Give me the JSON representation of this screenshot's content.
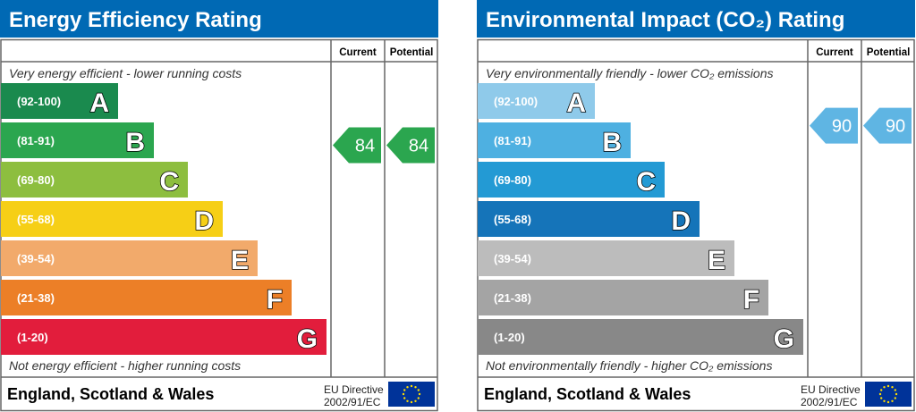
{
  "chart_data": [
    {
      "type": "bar",
      "title": "Energy Efficiency Rating",
      "column_headers": [
        "Current",
        "Potential"
      ],
      "top_note": "Very energy efficient - lower running costs",
      "bottom_note": "Not energy efficient - higher running costs",
      "footer": "England, Scotland & Wales",
      "directive": [
        "EU Directive",
        "2002/91/EC"
      ],
      "bands": [
        {
          "letter": "A",
          "range": "(92-100)",
          "color": "#1a8a4e"
        },
        {
          "letter": "B",
          "range": "(81-91)",
          "color": "#2ba64f"
        },
        {
          "letter": "C",
          "range": "(69-80)",
          "color": "#8dbe3f"
        },
        {
          "letter": "D",
          "range": "(55-68)",
          "color": "#f6cf16"
        },
        {
          "letter": "E",
          "range": "(39-54)",
          "color": "#f2aa6b"
        },
        {
          "letter": "F",
          "range": "(21-38)",
          "color": "#ec7f27"
        },
        {
          "letter": "G",
          "range": "(1-20)",
          "color": "#e21d3c"
        }
      ],
      "current": 84,
      "potential": 84,
      "arrow_color": "#2ba64f"
    },
    {
      "type": "bar",
      "title": "Environmental Impact (CO₂) Rating",
      "column_headers": [
        "Current",
        "Potential"
      ],
      "top_note": "Very environmentally friendly - lower CO₂ emissions",
      "bottom_note": "Not environmentally friendly - higher CO₂ emissions",
      "footer": "England, Scotland & Wales",
      "directive": [
        "EU Directive",
        "2002/91/EC"
      ],
      "bands": [
        {
          "letter": "A",
          "range": "(92-100)",
          "color": "#8fcaea"
        },
        {
          "letter": "B",
          "range": "(81-91)",
          "color": "#4eb0e1"
        },
        {
          "letter": "C",
          "range": "(69-80)",
          "color": "#239ad4"
        },
        {
          "letter": "D",
          "range": "(55-68)",
          "color": "#1574b9"
        },
        {
          "letter": "E",
          "range": "(39-54)",
          "color": "#bcbcbc"
        },
        {
          "letter": "F",
          "range": "(21-38)",
          "color": "#a4a4a4"
        },
        {
          "letter": "G",
          "range": "(1-20)",
          "color": "#888888"
        }
      ],
      "current": 90,
      "potential": 90,
      "arrow_color": "#5fb5e3"
    }
  ],
  "colors": {
    "header": "#0069b4",
    "eu_flag": "#003399",
    "eu_star": "#ffdd00"
  }
}
